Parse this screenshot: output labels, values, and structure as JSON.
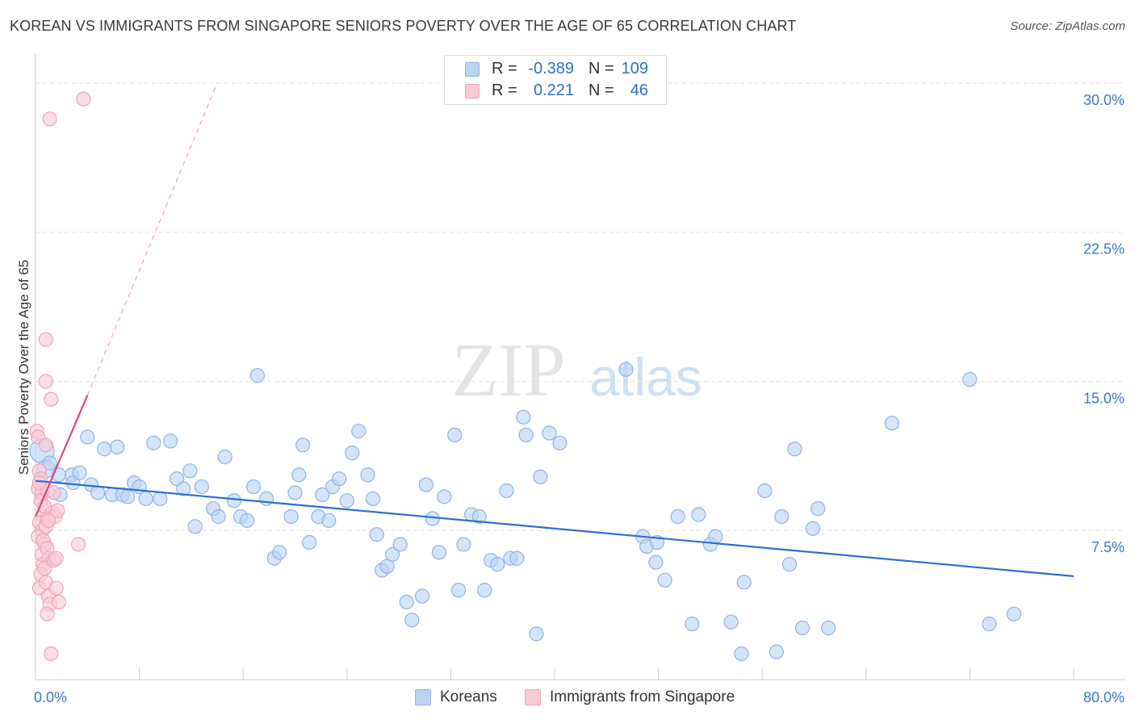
{
  "title": "KOREAN VS IMMIGRANTS FROM SINGAPORE SENIORS POVERTY OVER THE AGE OF 65 CORRELATION CHART",
  "source": "Source: ZipAtlas.com",
  "watermark": {
    "zip": "ZIP",
    "atlas": "atlas"
  },
  "legend_top": {
    "rows": [
      {
        "r_label": "R =",
        "r_value": "-0.389",
        "n_label": "N =",
        "n_value": "109",
        "color": "#bcd4f3"
      },
      {
        "r_label": "R =",
        "r_value": "0.221",
        "n_label": "N =",
        "n_value": "46",
        "color": "#f9c9d6"
      }
    ]
  },
  "legend_bottom": [
    {
      "label": "Koreans",
      "color": "#bcd4f3"
    },
    {
      "label": "Immigrants from Singapore",
      "color": "#f9c9d6"
    }
  ],
  "chart_data": {
    "type": "scatter",
    "title": "KOREAN VS IMMIGRANTS FROM SINGAPORE SENIORS POVERTY OVER THE AGE OF 65 CORRELATION CHART",
    "xlabel": "",
    "ylabel": "Seniors Poverty Over the Age of 65",
    "xlim": [
      0,
      80
    ],
    "ylim": [
      0,
      31.5
    ],
    "x_tick_labels": [
      {
        "value": 0,
        "label": "0.0%"
      },
      {
        "value": 80,
        "label": "80.0%"
      }
    ],
    "y_tick_labels": [
      {
        "value": 7.5,
        "label": "7.5%"
      },
      {
        "value": 15,
        "label": "15.0%"
      },
      {
        "value": 22.5,
        "label": "22.5%"
      },
      {
        "value": 30,
        "label": "30.0%"
      }
    ],
    "grid": true,
    "series": [
      {
        "name": "Koreans",
        "color": "#bcd4f3",
        "stroke": "#8fb4e5",
        "trend": {
          "x0": 0,
          "y0": 10.0,
          "x1": 80,
          "y1": 5.2,
          "color": "#2e6fcf"
        },
        "points": [
          [
            0.5,
            11.5
          ],
          [
            0.8,
            10.6
          ],
          [
            1.1,
            10.9
          ],
          [
            1.8,
            10.3
          ],
          [
            1.9,
            9.3
          ],
          [
            2.8,
            10.3
          ],
          [
            2.9,
            9.9
          ],
          [
            3.4,
            10.4
          ],
          [
            4.0,
            12.2
          ],
          [
            4.3,
            9.8
          ],
          [
            4.8,
            9.4
          ],
          [
            5.3,
            11.6
          ],
          [
            5.9,
            9.3
          ],
          [
            6.3,
            11.7
          ],
          [
            6.7,
            9.3
          ],
          [
            7.1,
            9.2
          ],
          [
            7.6,
            9.9
          ],
          [
            8.0,
            9.7
          ],
          [
            8.5,
            9.1
          ],
          [
            9.1,
            11.9
          ],
          [
            9.6,
            9.1
          ],
          [
            10.4,
            12.0
          ],
          [
            10.9,
            10.1
          ],
          [
            11.4,
            9.6
          ],
          [
            11.9,
            10.5
          ],
          [
            12.3,
            7.7
          ],
          [
            12.8,
            9.7
          ],
          [
            13.7,
            8.6
          ],
          [
            14.1,
            8.2
          ],
          [
            14.6,
            11.2
          ],
          [
            15.3,
            9.0
          ],
          [
            15.8,
            8.2
          ],
          [
            16.3,
            8.0
          ],
          [
            16.8,
            9.7
          ],
          [
            17.1,
            15.3
          ],
          [
            17.8,
            9.1
          ],
          [
            18.4,
            6.1
          ],
          [
            18.8,
            6.4
          ],
          [
            19.7,
            8.2
          ],
          [
            20.0,
            9.4
          ],
          [
            20.3,
            10.3
          ],
          [
            20.6,
            11.8
          ],
          [
            21.1,
            6.9
          ],
          [
            21.8,
            8.2
          ],
          [
            22.1,
            9.3
          ],
          [
            22.6,
            8.0
          ],
          [
            22.9,
            9.7
          ],
          [
            23.4,
            10.1
          ],
          [
            24.0,
            9.0
          ],
          [
            24.4,
            11.4
          ],
          [
            24.9,
            12.5
          ],
          [
            25.6,
            10.3
          ],
          [
            26.0,
            9.1
          ],
          [
            26.3,
            7.3
          ],
          [
            26.7,
            5.5
          ],
          [
            27.1,
            5.7
          ],
          [
            27.5,
            6.3
          ],
          [
            28.1,
            6.8
          ],
          [
            28.6,
            3.9
          ],
          [
            29.0,
            3.0
          ],
          [
            29.8,
            4.2
          ],
          [
            30.1,
            9.8
          ],
          [
            30.6,
            8.1
          ],
          [
            31.1,
            6.4
          ],
          [
            31.5,
            9.2
          ],
          [
            32.3,
            12.3
          ],
          [
            32.6,
            4.5
          ],
          [
            33.0,
            6.8
          ],
          [
            33.6,
            8.3
          ],
          [
            34.2,
            8.2
          ],
          [
            34.6,
            4.5
          ],
          [
            35.1,
            6.0
          ],
          [
            35.6,
            5.8
          ],
          [
            36.3,
            9.5
          ],
          [
            36.6,
            6.1
          ],
          [
            37.1,
            6.1
          ],
          [
            37.6,
            13.2
          ],
          [
            37.8,
            12.3
          ],
          [
            38.6,
            2.3
          ],
          [
            38.9,
            10.2
          ],
          [
            39.6,
            12.4
          ],
          [
            40.4,
            11.9
          ],
          [
            45.5,
            15.6
          ],
          [
            46.8,
            7.2
          ],
          [
            47.1,
            6.7
          ],
          [
            47.8,
            5.9
          ],
          [
            47.9,
            6.9
          ],
          [
            48.5,
            5.0
          ],
          [
            49.5,
            8.2
          ],
          [
            50.6,
            2.8
          ],
          [
            51.1,
            8.3
          ],
          [
            52.0,
            6.8
          ],
          [
            52.4,
            7.2
          ],
          [
            53.6,
            2.9
          ],
          [
            54.4,
            1.3
          ],
          [
            54.6,
            4.9
          ],
          [
            56.2,
            9.5
          ],
          [
            57.1,
            1.4
          ],
          [
            57.5,
            8.2
          ],
          [
            58.1,
            5.8
          ],
          [
            58.5,
            11.6
          ],
          [
            59.1,
            2.6
          ],
          [
            59.9,
            7.6
          ],
          [
            60.3,
            8.6
          ],
          [
            61.1,
            2.6
          ],
          [
            66.0,
            12.9
          ],
          [
            72.0,
            15.1
          ],
          [
            73.5,
            2.8
          ],
          [
            75.4,
            3.3
          ]
        ]
      },
      {
        "name": "Immigrants from Singapore",
        "color": "#f9c9d6",
        "stroke": "#f0a3b9",
        "trend": {
          "x0": 0,
          "y0": 8.2,
          "x1": 4.0,
          "y1": 14.3,
          "color": "#e0487a",
          "dashed_extension": {
            "x1": 14.0,
            "y1": 30.0
          }
        },
        "points": [
          [
            0.1,
            12.5
          ],
          [
            0.2,
            12.2
          ],
          [
            0.3,
            10.5
          ],
          [
            0.4,
            10.1
          ],
          [
            0.2,
            9.6
          ],
          [
            0.5,
            9.4
          ],
          [
            0.4,
            9.0
          ],
          [
            0.6,
            8.2
          ],
          [
            0.3,
            7.9
          ],
          [
            0.5,
            7.5
          ],
          [
            0.2,
            7.2
          ],
          [
            0.7,
            6.8
          ],
          [
            0.5,
            6.3
          ],
          [
            0.6,
            5.8
          ],
          [
            0.4,
            5.3
          ],
          [
            0.3,
            4.6
          ],
          [
            0.8,
            11.8
          ],
          [
            0.9,
            9.5
          ],
          [
            0.7,
            8.7
          ],
          [
            0.9,
            8.1
          ],
          [
            0.8,
            7.7
          ],
          [
            0.6,
            7.0
          ],
          [
            0.9,
            6.6
          ],
          [
            1.0,
            6.1
          ],
          [
            0.7,
            5.6
          ],
          [
            0.8,
            4.9
          ],
          [
            1.0,
            4.2
          ],
          [
            1.1,
            3.8
          ],
          [
            0.9,
            3.3
          ],
          [
            1.2,
            1.3
          ],
          [
            0.8,
            17.1
          ],
          [
            0.8,
            15.0
          ],
          [
            1.2,
            14.1
          ],
          [
            1.1,
            28.2
          ],
          [
            1.4,
            9.4
          ],
          [
            1.3,
            8.4
          ],
          [
            1.5,
            8.2
          ],
          [
            1.4,
            6.0
          ],
          [
            1.6,
            6.1
          ],
          [
            1.6,
            4.6
          ],
          [
            1.8,
            3.9
          ],
          [
            1.7,
            8.5
          ],
          [
            3.3,
            6.8
          ],
          [
            3.7,
            29.2
          ],
          [
            0.3,
            9.9
          ],
          [
            1.0,
            8.0
          ]
        ]
      }
    ]
  }
}
